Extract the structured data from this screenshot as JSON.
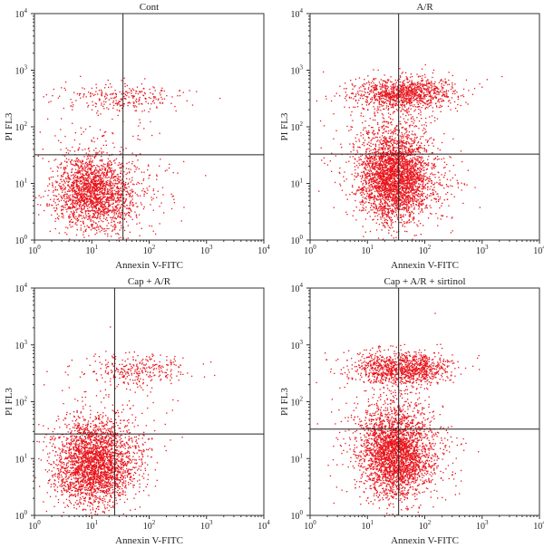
{
  "chart_data": [
    {
      "type": "scatter",
      "title": "Cont",
      "xlabel": "Annexin V-FITC",
      "ylabel": "PI FL3",
      "x_scale": "log",
      "y_scale": "log",
      "xlim": [
        1,
        10000
      ],
      "ylim": [
        1,
        10000
      ],
      "x_ticks": [
        "10^0",
        "10^1",
        "10^2",
        "10^3",
        "10^4"
      ],
      "y_ticks": [
        "10^0",
        "10^1",
        "10^2",
        "10^3",
        "10^4"
      ],
      "quadrant_gate": {
        "x": 35,
        "y": 32
      },
      "point_color": "#e8141b",
      "populations": [
        {
          "center": [
            10,
            7
          ],
          "spread_log10": [
            0.32,
            0.34
          ],
          "count": 1800
        },
        {
          "center": [
            30,
            7
          ],
          "spread_log10": [
            0.45,
            0.3
          ],
          "count": 250
        },
        {
          "center": [
            35,
            330
          ],
          "spread_log10": [
            0.55,
            0.12
          ],
          "count": 260
        },
        {
          "center": [
            15,
            40
          ],
          "spread_log10": [
            0.5,
            0.5
          ],
          "count": 120
        }
      ]
    },
    {
      "type": "scatter",
      "title": "A/R",
      "xlabel": "Annexin V-FITC",
      "ylabel": "PI FL3",
      "x_scale": "log",
      "y_scale": "log",
      "xlim": [
        1,
        10000
      ],
      "ylim": [
        1,
        10000
      ],
      "x_ticks": [
        "10^0",
        "10^1",
        "10^2",
        "10^3",
        "10^4"
      ],
      "y_ticks": [
        "10^0",
        "10^1",
        "10^2",
        "10^3",
        "10^4"
      ],
      "quadrant_gate": {
        "x": 35,
        "y": 33
      },
      "point_color": "#e8141b",
      "populations": [
        {
          "center": [
            28,
            14
          ],
          "spread_log10": [
            0.3,
            0.4
          ],
          "count": 2600
        },
        {
          "center": [
            45,
            10
          ],
          "spread_log10": [
            0.45,
            0.35
          ],
          "count": 500
        },
        {
          "center": [
            40,
            400
          ],
          "spread_log10": [
            0.45,
            0.14
          ],
          "count": 1100
        },
        {
          "center": [
            25,
            50
          ],
          "spread_log10": [
            0.45,
            0.5
          ],
          "count": 300
        }
      ]
    },
    {
      "type": "scatter",
      "title": "Cap + A/R",
      "xlabel": "Annexin V-FITC",
      "ylabel": "PI FL3",
      "x_scale": "log",
      "y_scale": "log",
      "xlim": [
        1,
        10000
      ],
      "ylim": [
        1,
        10000
      ],
      "x_ticks": [
        "10^0",
        "10^1",
        "10^2",
        "10^3",
        "10^4"
      ],
      "y_ticks": [
        "10^0",
        "10^1",
        "10^2",
        "10^3",
        "10^4"
      ],
      "quadrant_gate": {
        "x": 25,
        "y": 27
      },
      "point_color": "#e8141b",
      "populations": [
        {
          "center": [
            10,
            8
          ],
          "spread_log10": [
            0.33,
            0.36
          ],
          "count": 2400
        },
        {
          "center": [
            20,
            12
          ],
          "spread_log10": [
            0.4,
            0.35
          ],
          "count": 400
        },
        {
          "center": [
            60,
            380
          ],
          "spread_log10": [
            0.45,
            0.14
          ],
          "count": 280
        },
        {
          "center": [
            20,
            60
          ],
          "spread_log10": [
            0.55,
            0.5
          ],
          "count": 140
        }
      ]
    },
    {
      "type": "scatter",
      "title": "Cap + A/R + sirtinol",
      "xlabel": "Annexin V-FITC",
      "ylabel": "PI FL3",
      "x_scale": "log",
      "y_scale": "log",
      "xlim": [
        1,
        10000
      ],
      "ylim": [
        1,
        10000
      ],
      "x_ticks": [
        "10^0",
        "10^1",
        "10^2",
        "10^3",
        "10^4"
      ],
      "y_ticks": [
        "10^0",
        "10^1",
        "10^2",
        "10^3",
        "10^4"
      ],
      "quadrant_gate": {
        "x": 35,
        "y": 33
      },
      "point_color": "#e8141b",
      "populations": [
        {
          "center": [
            30,
            13
          ],
          "spread_log10": [
            0.3,
            0.4
          ],
          "count": 2400
        },
        {
          "center": [
            45,
            10
          ],
          "spread_log10": [
            0.45,
            0.35
          ],
          "count": 450
        },
        {
          "center": [
            40,
            400
          ],
          "spread_log10": [
            0.45,
            0.14
          ],
          "count": 1100
        },
        {
          "center": [
            25,
            50
          ],
          "spread_log10": [
            0.45,
            0.5
          ],
          "count": 280
        }
      ]
    }
  ]
}
